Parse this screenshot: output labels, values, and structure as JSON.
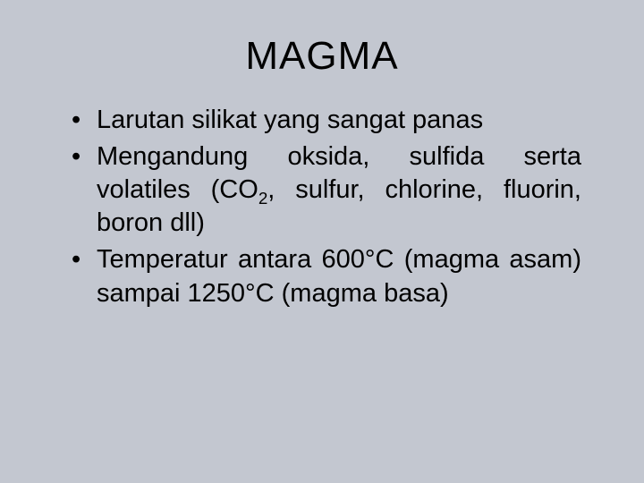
{
  "slide": {
    "background_color": "#c3c7d0",
    "text_color": "#000000",
    "title": "MAGMA",
    "title_fontsize": 44,
    "body_fontsize": 29,
    "font_family": "Comic Sans MS",
    "bullets": [
      {
        "text": "Larutan silikat yang sangat panas",
        "justify": false
      },
      {
        "text": "Mengandung oksida, sulfida serta volatiles (CO₂, sulfur, chlorine, fluorin, boron dll)",
        "justify": true
      },
      {
        "text": "Temperatur antara 600°C (magma asam) sampai 1250°C (magma basa)",
        "justify": true
      }
    ]
  }
}
